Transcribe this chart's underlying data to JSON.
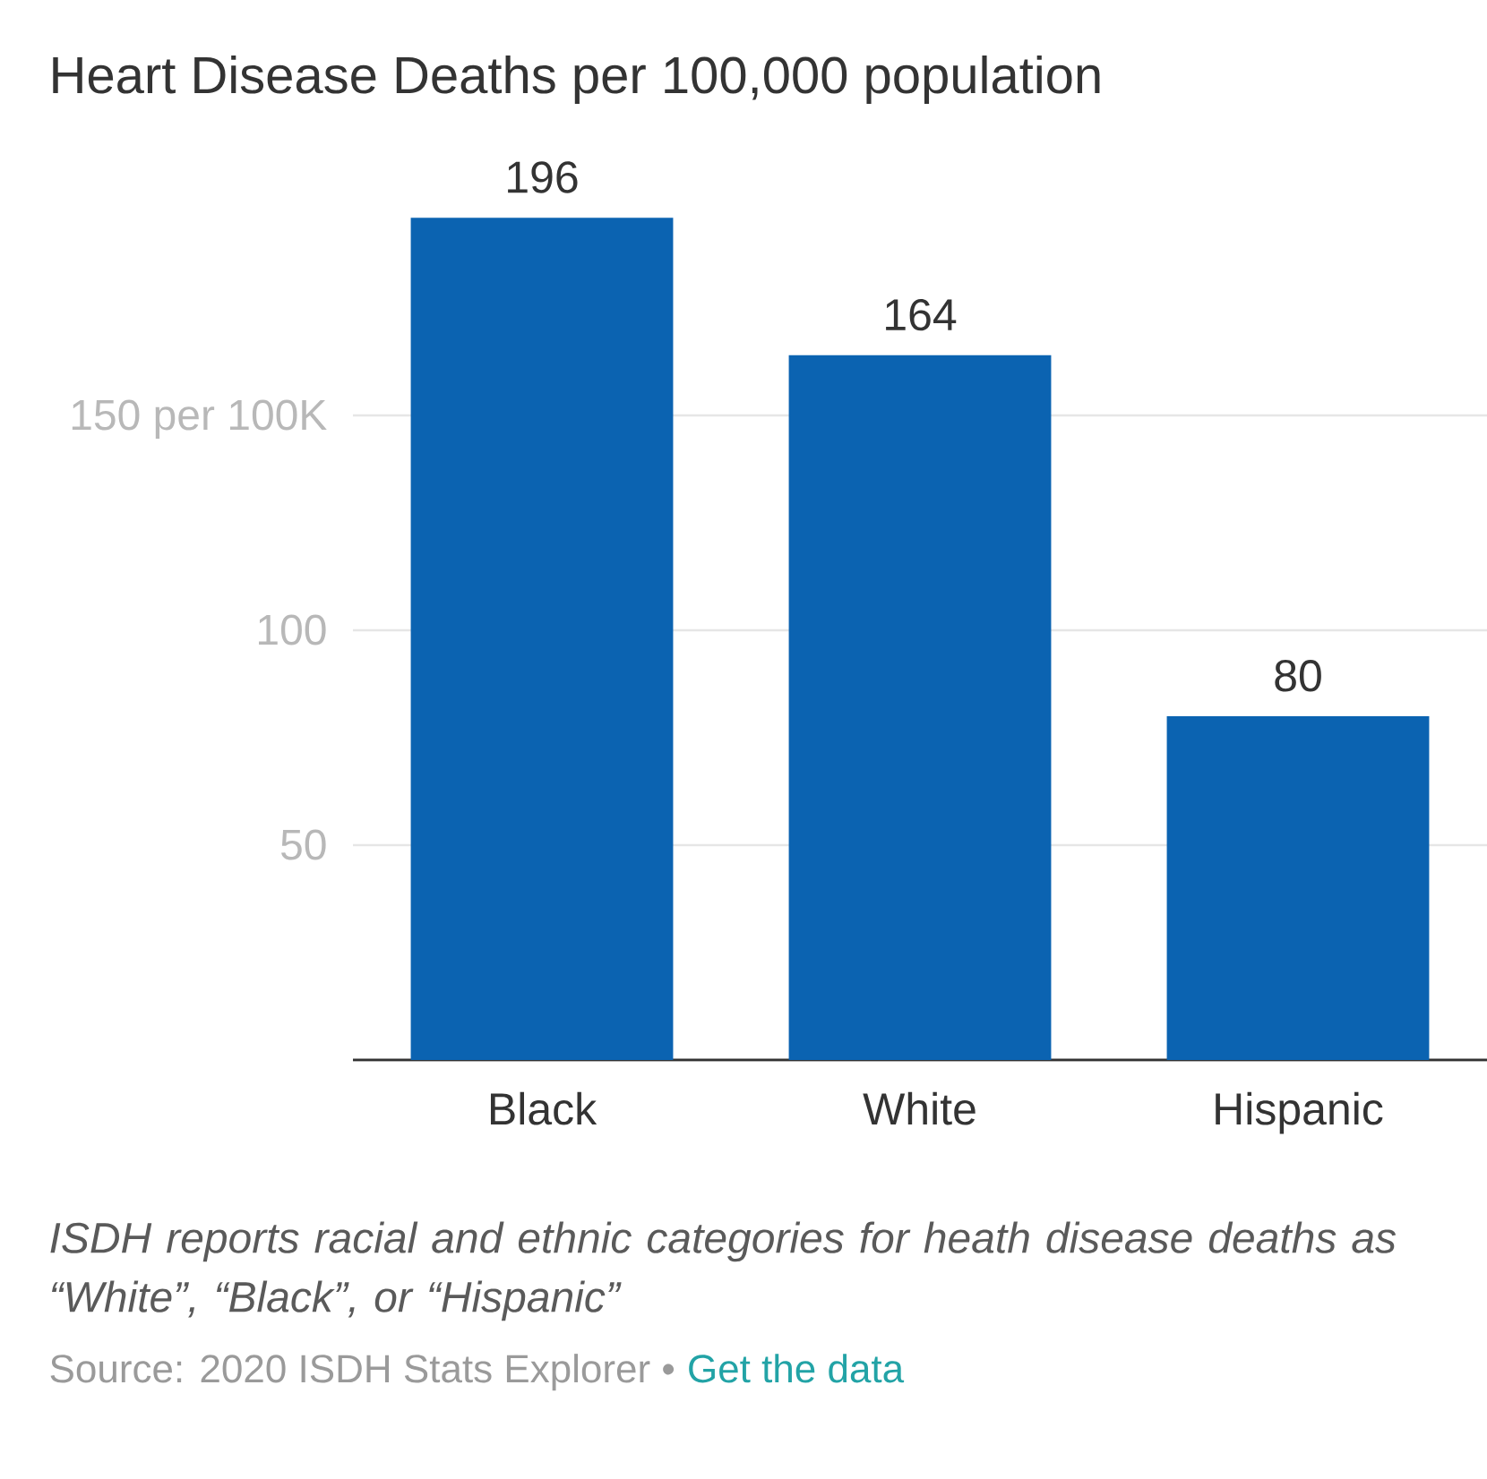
{
  "chart_data": {
    "type": "bar",
    "title": "Heart Disease Deaths per 100,000 population",
    "categories": [
      "Black",
      "White",
      "Hispanic"
    ],
    "values": [
      196,
      164,
      80
    ],
    "color": "#0b63b1",
    "ylim": [
      0,
      196
    ],
    "yticks": [
      50,
      100,
      {
        "value": 150,
        "label": "150 per 100K"
      }
    ],
    "grid": "y",
    "data_labels": true,
    "annotations": [
      "ISDH reports racial and ethnic categories for heath disease deaths as “White”, “Black”, or “Hispanic”",
      "Source: 2020 ISDH Stats Explorer •",
      "Get the data"
    ]
  }
}
